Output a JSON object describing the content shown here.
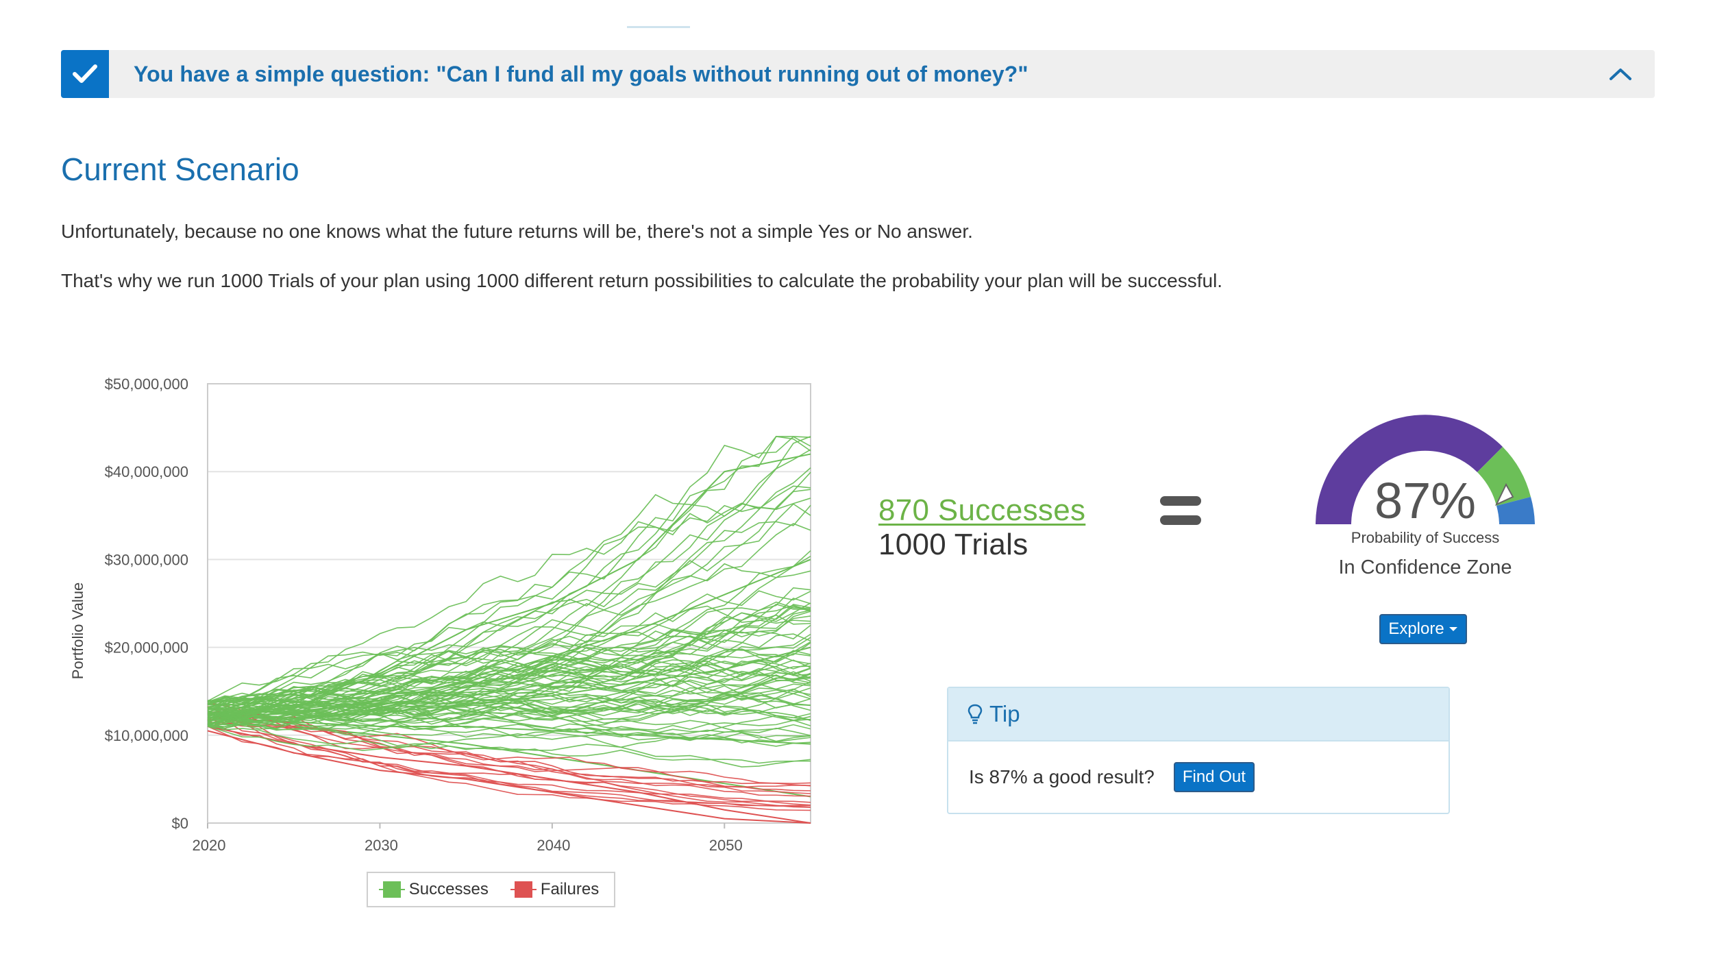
{
  "question_bar": {
    "text": "You have a simple question: \"Can I fund all my goals without running out of money?\"",
    "check_icon": "check-icon",
    "chevron_icon": "chevron-up-icon",
    "accent": "#0a73c6"
  },
  "scenario": {
    "title": "Current Scenario",
    "paragraph1": "Unfortunately, because no one knows what the future returns will be, there's not a simple Yes or No answer.",
    "paragraph2": "That's why we run 1000 Trials of your plan using 1000 different return possibilities to calculate the probability your plan will be successful."
  },
  "chart_data": {
    "type": "line",
    "title": "",
    "xlabel": "",
    "ylabel": "Portfolio Value",
    "x_ticks": [
      "2020",
      "2030",
      "2040",
      "2050"
    ],
    "y_ticks": [
      "$0",
      "$10,000,000",
      "$20,000,000",
      "$30,000,000",
      "$40,000,000",
      "$50,000,000"
    ],
    "xlim": [
      2020,
      2055
    ],
    "ylim": [
      0,
      50000000
    ],
    "grid": true,
    "legend_position": "bottom",
    "series": [
      {
        "name": "Successes",
        "color": "#6cbf58",
        "x": [
          2020,
          2025,
          2030,
          2035,
          2040,
          2045,
          2050,
          2055
        ],
        "values": [
          12000000,
          13000000,
          17000000,
          22000000,
          25000000,
          30000000,
          40000000,
          42000000
        ]
      },
      {
        "name": "Successes",
        "color": "#6cbf58",
        "x": [
          2020,
          2025,
          2030,
          2035,
          2040,
          2045,
          2050,
          2055
        ],
        "values": [
          12000000,
          12500000,
          14000000,
          16000000,
          19000000,
          22000000,
          26000000,
          30000000
        ]
      },
      {
        "name": "Successes",
        "color": "#6cbf58",
        "x": [
          2020,
          2025,
          2030,
          2035,
          2040,
          2045,
          2050,
          2055
        ],
        "values": [
          12000000,
          12000000,
          12500000,
          13500000,
          14500000,
          16000000,
          17500000,
          20000000
        ]
      },
      {
        "name": "Successes",
        "color": "#6cbf58",
        "x": [
          2020,
          2025,
          2030,
          2035,
          2040,
          2045,
          2050,
          2055
        ],
        "values": [
          12000000,
          11500000,
          11000000,
          11000000,
          10500000,
          10000000,
          9500000,
          9000000
        ]
      },
      {
        "name": "Successes",
        "color": "#6cbf58",
        "x": [
          2020,
          2025,
          2030,
          2035,
          2040,
          2045,
          2050,
          2055
        ],
        "values": [
          12000000,
          11000000,
          10000000,
          9000000,
          7500000,
          6000000,
          4500000,
          3000000
        ]
      },
      {
        "name": "Failures",
        "color": "#de5252",
        "x": [
          2020,
          2025,
          2030,
          2035,
          2040,
          2045,
          2050,
          2055
        ],
        "values": [
          11000000,
          9000000,
          7500000,
          6500000,
          5000000,
          3500000,
          1500000,
          0
        ]
      },
      {
        "name": "Failures",
        "color": "#de5252",
        "x": [
          2020,
          2025,
          2030,
          2035,
          2040,
          2045,
          2050,
          2055
        ],
        "values": [
          10500000,
          8000000,
          6000000,
          5000000,
          3500000,
          2000000,
          500000,
          0
        ]
      }
    ],
    "legend": [
      "Successes",
      "Failures"
    ]
  },
  "summary": {
    "successes_label": "870 Successes",
    "trials_label": "1000 Trials",
    "equals_icon": "equals-icon"
  },
  "gauge": {
    "value": 87,
    "percent_text": "87%",
    "label": "Probability of Success",
    "zone": "In Confidence Zone",
    "colors": {
      "low": "#5e3d9e",
      "mid": "#6cbf58",
      "high": "#3a7bc8"
    }
  },
  "explore_button": {
    "label": "Explore"
  },
  "tip": {
    "title": "Tip",
    "icon": "lightbulb-icon",
    "question": "Is 87% a good result?",
    "button_label": "Find Out"
  }
}
